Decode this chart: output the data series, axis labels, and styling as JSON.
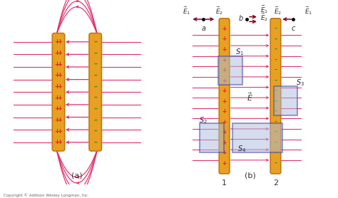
{
  "bg_color": "#ffffff",
  "plate_color": "#e8a020",
  "plate_edge_color": "#c07818",
  "field_line_color": "#e0306a",
  "plus_color": "#dd2222",
  "minus_color": "#3a8a3a",
  "box_edge_color": "#4444aa",
  "box_fill_color": "#aabbdd",
  "dark_arrow_color": "#880022",
  "text_color": "#333333",
  "copyright_text": "Copyright © Addison Wesley Longman, Inc.",
  "label_a": "(a)",
  "label_b": "(b)"
}
